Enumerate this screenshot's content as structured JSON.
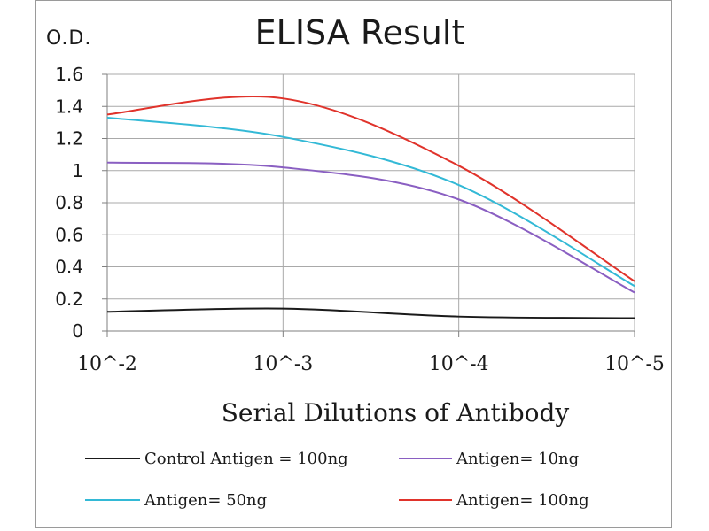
{
  "chart_data": {
    "type": "line",
    "title": "ELISA Result",
    "ylabel": "O.D.",
    "xlabel": "Serial Dilutions  of Antibody",
    "categories": [
      "10^-2",
      "10^-3",
      "10^-4",
      "10^-5"
    ],
    "y_ticks": [
      "0",
      "0.2",
      "0.4",
      "0.6",
      "0.8",
      "1",
      "1.2",
      "1.4",
      "1.6"
    ],
    "ylim": [
      0,
      1.6
    ],
    "grid": true,
    "legend_position": "bottom",
    "series": [
      {
        "name": "Control Antigen = 100ng",
        "color": "#1a1a1a",
        "values": [
          0.12,
          0.14,
          0.09,
          0.08
        ]
      },
      {
        "name": "Antigen= 10ng",
        "color": "#8a5fc2",
        "values": [
          1.05,
          1.02,
          0.82,
          0.24
        ]
      },
      {
        "name": "Antigen= 50ng",
        "color": "#33b9d6",
        "values": [
          1.33,
          1.21,
          0.91,
          0.28
        ]
      },
      {
        "name": "Antigen= 100ng",
        "color": "#e0332b",
        "values": [
          1.35,
          1.45,
          1.03,
          0.31
        ]
      }
    ]
  }
}
